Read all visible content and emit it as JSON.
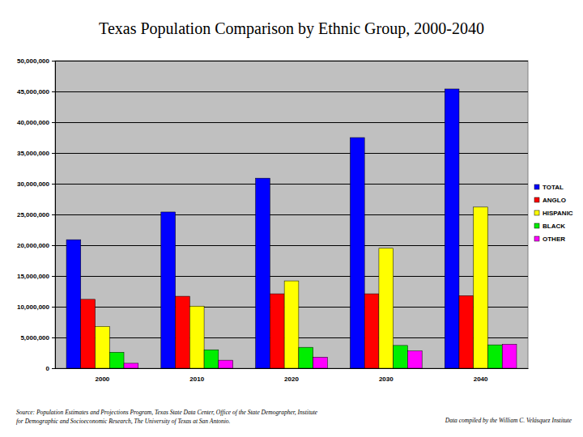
{
  "chart_data": {
    "type": "bar",
    "title": "Texas Population Comparison by Ethnic Group, 2000-2040",
    "categories": [
      "2000",
      "2010",
      "2020",
      "2030",
      "2040"
    ],
    "series": [
      {
        "name": "TOTAL",
        "color": "#0000ff",
        "values": [
          20900000,
          25400000,
          30900000,
          37500000,
          45400000
        ]
      },
      {
        "name": "ANGLO",
        "color": "#ff0000",
        "values": [
          11200000,
          11700000,
          12100000,
          12100000,
          11800000
        ]
      },
      {
        "name": "HISPANIC",
        "color": "#ffff00",
        "values": [
          6800000,
          10100000,
          14200000,
          19500000,
          26200000
        ]
      },
      {
        "name": "BLACK",
        "color": "#00ee00",
        "values": [
          2600000,
          3000000,
          3400000,
          3700000,
          3800000
        ]
      },
      {
        "name": "OTHER",
        "color": "#ff00ff",
        "values": [
          800000,
          1300000,
          1800000,
          2800000,
          3900000
        ]
      }
    ],
    "ylim": [
      0,
      50000000
    ],
    "yticks": [
      0,
      {
        "value": 5000000,
        "label": "5,000,000"
      },
      {
        "value": 10000000,
        "label": "10,000,000"
      },
      {
        "value": 15000000,
        "label": "15,000,000"
      },
      {
        "value": 20000000,
        "label": "20,000,000"
      },
      {
        "value": 25000000,
        "label": "25,000,000"
      },
      {
        "value": 30000000,
        "label": "30,000,000"
      },
      {
        "value": 35000000,
        "label": "35,000,000"
      },
      {
        "value": 40000000,
        "label": "40,000,000"
      },
      {
        "value": 45000000,
        "label": "45,000,000"
      },
      {
        "value": 50000000,
        "label": "50,000,000"
      }
    ],
    "grid": true,
    "legend": "right",
    "annotations": [
      "Source: Population Estimates and Projections Program, Texas State Data Center, Office of the State Demographer, Institute",
      "for Demographic and Socioeconomic Research, The University of Texas at San Antonio.",
      "Data compiled by the William C. Velásquez Institute"
    ]
  }
}
